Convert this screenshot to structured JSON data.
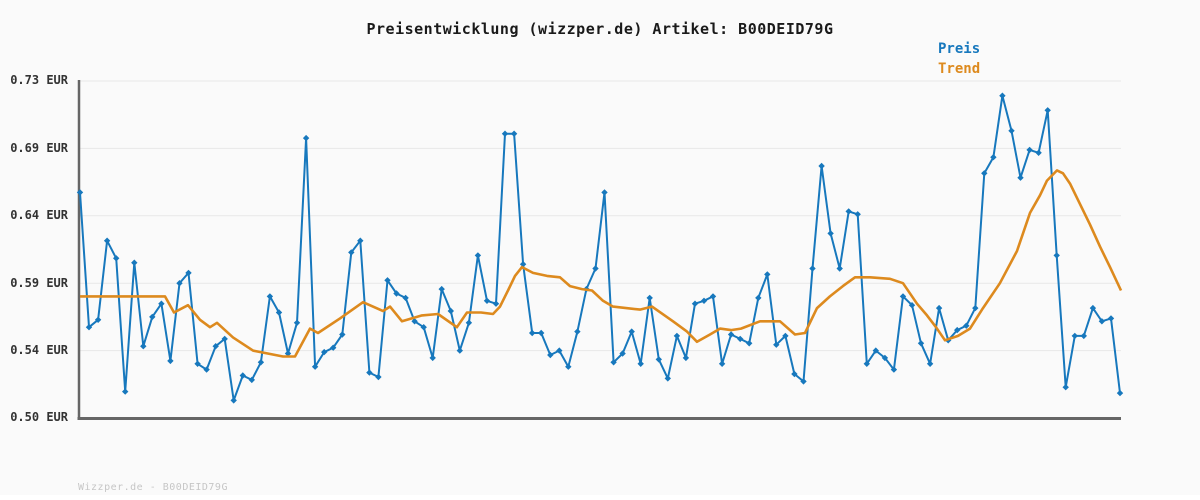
{
  "page": {
    "title": "Preisentwicklung (wizzper.de) Artikel: B00DEID79G",
    "footer": "Wizzper.de - B00DEID79G",
    "background_color": "#fafafa"
  },
  "legend": {
    "position": "top-right",
    "items": [
      {
        "label": "Preis",
        "color": "#1778bd"
      },
      {
        "label": "Trend",
        "color": "#dd8a1e"
      }
    ]
  },
  "chart_data": {
    "type": "line",
    "title": "Preisentwicklung (wizzper.de) Artikel: B00DEID79G",
    "xlabel": "",
    "ylabel": "EUR",
    "x_tick_labels_visible": false,
    "grid": true,
    "grid_color": "#e8e8e8",
    "axis_color": "#666666",
    "ylim": [
      0.5,
      0.73
    ],
    "yticks": [
      "0.73 EUR",
      "0.69 EUR",
      "0.64 EUR",
      "0.59 EUR",
      "0.54 EUR",
      "0.50 EUR"
    ],
    "series": [
      {
        "name": "Preis",
        "color": "#1778bd",
        "marker": "diamond",
        "unit": "EUR",
        "values": [
          0.654,
          0.562,
          0.567,
          0.621,
          0.609,
          0.518,
          0.606,
          0.549,
          0.569,
          0.578,
          0.539,
          0.592,
          0.599,
          0.537,
          0.533,
          0.549,
          0.554,
          0.512,
          0.529,
          0.526,
          0.538,
          0.583,
          0.572,
          0.544,
          0.565,
          0.691,
          0.535,
          0.545,
          0.548,
          0.557,
          0.613,
          0.621,
          0.531,
          0.528,
          0.594,
          0.585,
          0.582,
          0.566,
          0.562,
          0.541,
          0.588,
          0.573,
          0.546,
          0.565,
          0.611,
          0.58,
          0.578,
          0.694,
          0.694,
          0.605,
          0.558,
          0.558,
          0.543,
          0.546,
          0.535,
          0.559,
          0.588,
          0.602,
          0.654,
          0.538,
          0.544,
          0.559,
          0.537,
          0.582,
          0.54,
          0.527,
          0.556,
          0.541,
          0.578,
          0.58,
          0.583,
          0.537,
          0.557,
          0.554,
          0.551,
          0.582,
          0.598,
          0.55,
          0.556,
          0.53,
          0.525,
          0.602,
          0.672,
          0.626,
          0.602,
          0.641,
          0.639,
          0.537,
          0.546,
          0.541,
          0.533,
          0.583,
          0.577,
          0.551,
          0.537,
          0.575,
          0.553,
          0.56,
          0.563,
          0.575,
          0.667,
          0.678,
          0.72,
          0.696,
          0.664,
          0.683,
          0.681,
          0.71,
          0.611,
          0.521,
          0.556,
          0.556,
          0.575,
          0.566,
          0.568,
          0.517
        ]
      },
      {
        "name": "Trend",
        "color": "#dd8a1e",
        "marker": "none",
        "unit": "EUR",
        "points": [
          [
            0.0,
            0.583
          ],
          [
            0.0817,
            0.583
          ],
          [
            0.0903,
            0.572
          ],
          [
            0.1037,
            0.577
          ],
          [
            0.1153,
            0.567
          ],
          [
            0.1249,
            0.562
          ],
          [
            0.1316,
            0.565
          ],
          [
            0.147,
            0.555
          ],
          [
            0.1662,
            0.546
          ],
          [
            0.195,
            0.542
          ],
          [
            0.2065,
            0.542
          ],
          [
            0.2209,
            0.561
          ],
          [
            0.2286,
            0.558
          ],
          [
            0.2498,
            0.568
          ],
          [
            0.2719,
            0.579
          ],
          [
            0.2911,
            0.573
          ],
          [
            0.2978,
            0.576
          ],
          [
            0.3093,
            0.566
          ],
          [
            0.3285,
            0.57
          ],
          [
            0.3439,
            0.571
          ],
          [
            0.3621,
            0.562
          ],
          [
            0.3718,
            0.572
          ],
          [
            0.3852,
            0.572
          ],
          [
            0.3967,
            0.571
          ],
          [
            0.4035,
            0.576
          ],
          [
            0.4111,
            0.587
          ],
          [
            0.4179,
            0.597
          ],
          [
            0.4246,
            0.603
          ],
          [
            0.4352,
            0.599
          ],
          [
            0.4486,
            0.597
          ],
          [
            0.4611,
            0.596
          ],
          [
            0.4707,
            0.59
          ],
          [
            0.4822,
            0.588
          ],
          [
            0.4918,
            0.587
          ],
          [
            0.5024,
            0.58
          ],
          [
            0.512,
            0.576
          ],
          [
            0.5379,
            0.574
          ],
          [
            0.5495,
            0.576
          ],
          [
            0.5696,
            0.566
          ],
          [
            0.5831,
            0.559
          ],
          [
            0.5927,
            0.552
          ],
          [
            0.6052,
            0.557
          ],
          [
            0.6148,
            0.561
          ],
          [
            0.6254,
            0.56
          ],
          [
            0.635,
            0.561
          ],
          [
            0.6532,
            0.566
          ],
          [
            0.6724,
            0.566
          ],
          [
            0.6868,
            0.557
          ],
          [
            0.6964,
            0.558
          ],
          [
            0.708,
            0.575
          ],
          [
            0.7204,
            0.583
          ],
          [
            0.7329,
            0.59
          ],
          [
            0.7445,
            0.596
          ],
          [
            0.7589,
            0.596
          ],
          [
            0.7781,
            0.595
          ],
          [
            0.7906,
            0.592
          ],
          [
            0.804,
            0.578
          ],
          [
            0.8136,
            0.57
          ],
          [
            0.8223,
            0.562
          ],
          [
            0.8309,
            0.553
          ],
          [
            0.8434,
            0.556
          ],
          [
            0.8549,
            0.561
          ],
          [
            0.8674,
            0.575
          ],
          [
            0.8837,
            0.592
          ],
          [
            0.9001,
            0.614
          ],
          [
            0.9126,
            0.64
          ],
          [
            0.9222,
            0.652
          ],
          [
            0.9289,
            0.662
          ],
          [
            0.9385,
            0.669
          ],
          [
            0.9443,
            0.667
          ],
          [
            0.951,
            0.66
          ],
          [
            0.9606,
            0.646
          ],
          [
            0.9702,
            0.632
          ],
          [
            0.9798,
            0.617
          ],
          [
            0.9894,
            0.603
          ],
          [
            1.0,
            0.587
          ]
        ]
      }
    ]
  }
}
